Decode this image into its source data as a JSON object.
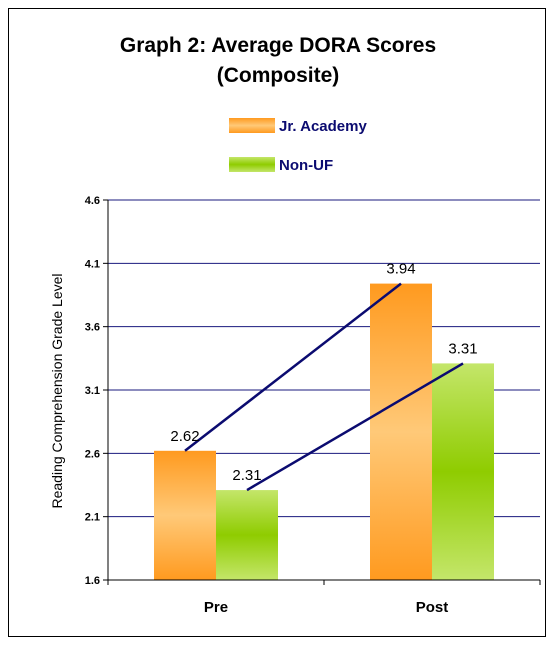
{
  "chart_data": {
    "type": "bar",
    "title": "Graph 2: Average DORA Scores",
    "subtitle": "(Composite)",
    "ylabel": "Reading Comprehension Grade Level",
    "xlabel": "",
    "categories": [
      "Pre",
      "Post"
    ],
    "series": [
      {
        "name": "Jr. Academy",
        "values": [
          2.62,
          3.94
        ]
      },
      {
        "name": "Non-UF",
        "values": [
          2.31,
          3.31
        ]
      }
    ],
    "data_labels": [
      [
        "2.62",
        "3.94"
      ],
      [
        "2.31",
        "3.31"
      ]
    ],
    "ylim": [
      1.6,
      4.6
    ],
    "yticks": [
      "4.6",
      "4.1",
      "3.6",
      "3.1",
      "2.6",
      "2.1",
      "1.6"
    ],
    "grid": true,
    "legend_position": "top-center",
    "trend_lines": true,
    "colors": {
      "jr_academy": "#ff9a1f",
      "jr_academy_light": "#ffc978",
      "non_uf": "#8fcc00",
      "non_uf_light": "#c4e66a",
      "gridline": "#1a1a7e",
      "trend_line": "#0b0b70",
      "legend_text": "#0b0b70"
    }
  }
}
